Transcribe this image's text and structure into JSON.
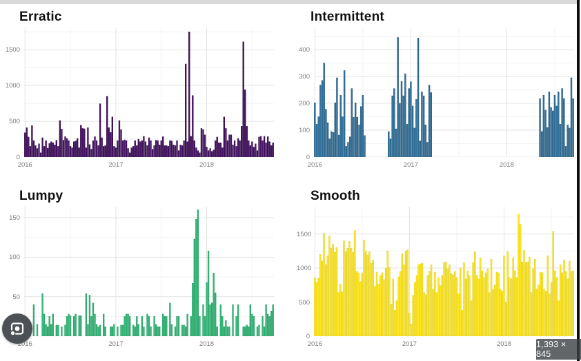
{
  "page": {
    "size_badge": "1,393 × 845",
    "lens_button_icon": "google-lens-camera-icon",
    "top_strip_color": "#d8d8d8",
    "right_border_color": "#0b0b0b",
    "badge_bg": "rgba(60,64,67,0.80)"
  },
  "chart_data": [
    {
      "type": "bar",
      "title": "Erratic",
      "bar_color": "#481567",
      "bar_border": "#310a47",
      "y_ticks": [
        0,
        500,
        1000,
        1500
      ],
      "y_max": 1810,
      "x_ticks": [
        {
          "label": "2016",
          "week": 0
        },
        {
          "label": "2017",
          "week": 52
        },
        {
          "label": "2018",
          "week": 104
        }
      ],
      "x_minor_weeks": [
        26,
        78,
        130
      ],
      "grid": "on",
      "values": [
        340,
        410,
        280,
        150,
        440,
        230,
        160,
        120,
        185,
        60,
        270,
        150,
        230,
        125,
        190,
        215,
        200,
        170,
        235,
        150,
        510,
        390,
        235,
        285,
        260,
        230,
        150,
        130,
        215,
        225,
        260,
        130,
        445,
        400,
        395,
        130,
        410,
        175,
        110,
        230,
        285,
        230,
        160,
        745,
        270,
        150,
        160,
        850,
        410,
        345,
        560,
        150,
        130,
        230,
        510,
        385,
        230,
        240,
        230,
        120,
        60,
        130,
        150,
        230,
        160,
        250,
        215,
        230,
        290,
        215,
        160,
        270,
        230,
        110,
        160,
        235,
        230,
        170,
        230,
        285,
        160,
        160,
        150,
        230,
        225,
        170,
        160,
        230,
        90,
        170,
        160,
        230,
        1300,
        215,
        1750,
        290,
        860,
        230,
        130,
        90,
        60,
        400,
        385,
        310,
        140,
        90,
        120,
        80,
        100,
        230,
        280,
        200,
        200,
        130,
        560,
        400,
        230,
        310,
        310,
        170,
        230,
        150,
        260,
        230,
        430,
        1610,
        940,
        430,
        230,
        160,
        215,
        140,
        185,
        90,
        280,
        290,
        230,
        290,
        200,
        285,
        215,
        160,
        200
      ]
    },
    {
      "type": "bar",
      "title": "Intermittent",
      "bar_color": "#33739c",
      "bar_border": "#24567a",
      "y_ticks": [
        0,
        100,
        200,
        300,
        400
      ],
      "y_max": 482,
      "x_ticks": [
        {
          "label": "2016",
          "week": 0
        },
        {
          "label": "2017",
          "week": 52
        },
        {
          "label": "2018",
          "week": 104
        }
      ],
      "x_minor_weeks": [
        26,
        78,
        130
      ],
      "grid": "on",
      "values": [
        202,
        122,
        150,
        268,
        285,
        350,
        178,
        128,
        68,
        95,
        92,
        202,
        295,
        82,
        230,
        150,
        322,
        40,
        55,
        75,
        255,
        148,
        202,
        148,
        120,
        188,
        230,
        80,
        0,
        0,
        0,
        0,
        0,
        0,
        0,
        0,
        0,
        0,
        0,
        0,
        95,
        68,
        228,
        255,
        105,
        445,
        200,
        282,
        228,
        310,
        122,
        255,
        280,
        190,
        108,
        215,
        443,
        60,
        243,
        228,
        120,
        55,
        268,
        240,
        0,
        0,
        0,
        0,
        0,
        0,
        0,
        0,
        0,
        0,
        0,
        0,
        0,
        0,
        0,
        0,
        0,
        0,
        0,
        0,
        0,
        0,
        0,
        0,
        0,
        0,
        0,
        0,
        0,
        0,
        0,
        0,
        0,
        0,
        0,
        0,
        0,
        0,
        0,
        0,
        0,
        0,
        0,
        0,
        0,
        0,
        0,
        0,
        0,
        0,
        0,
        0,
        0,
        0,
        0,
        0,
        0,
        0,
        218,
        95,
        230,
        175,
        110,
        243,
        185,
        172,
        230,
        190,
        243,
        122,
        255,
        218,
        40,
        120,
        108,
        295,
        218
      ]
    },
    {
      "type": "bar",
      "title": "Lumpy",
      "bar_color": "#35b779",
      "bar_border": "#23995f",
      "y_ticks": [
        0,
        50,
        100,
        150
      ],
      "y_max": 164,
      "x_ticks": [
        {
          "label": "2016",
          "week": 0
        },
        {
          "label": "2017",
          "week": 52
        },
        {
          "label": "2018",
          "week": 104
        }
      ],
      "x_minor_weeks": [
        26,
        78,
        130
      ],
      "grid": "on",
      "values": [
        15,
        0,
        15,
        15,
        0,
        40,
        0,
        15,
        0,
        0,
        54,
        28,
        15,
        12,
        25,
        15,
        28,
        0,
        14,
        14,
        0,
        12,
        0,
        14,
        25,
        28,
        26,
        0,
        25,
        28,
        0,
        26,
        26,
        0,
        0,
        54,
        15,
        52,
        25,
        42,
        28,
        15,
        12,
        14,
        0,
        28,
        12,
        0,
        0,
        12,
        12,
        15,
        0,
        12,
        0,
        14,
        14,
        25,
        28,
        28,
        25,
        0,
        14,
        12,
        25,
        15,
        0,
        25,
        12,
        0,
        28,
        25,
        12,
        0,
        25,
        15,
        12,
        12,
        0,
        28,
        25,
        25,
        0,
        42,
        15,
        0,
        12,
        25,
        25,
        0,
        14,
        14,
        12,
        28,
        0,
        25,
        67,
        123,
        148,
        160,
        25,
        0,
        40,
        25,
        68,
        108,
        40,
        42,
        80,
        55,
        12,
        0,
        40,
        25,
        12,
        20,
        12,
        12,
        0,
        40,
        0,
        25,
        40,
        0,
        0,
        12,
        12,
        14,
        12,
        40,
        28,
        25,
        0,
        12,
        14,
        0,
        25,
        12,
        40,
        28,
        25,
        32,
        40
      ]
    },
    {
      "type": "bar",
      "title": "Smooth",
      "bar_color": "#fde725",
      "bar_border": "#e0ca12",
      "y_ticks": [
        0,
        500,
        1000,
        1500
      ],
      "y_max": 1900,
      "x_ticks": [
        {
          "label": "2016",
          "week": 0
        },
        {
          "label": "2017",
          "week": 52
        },
        {
          "label": "2018",
          "week": 104
        }
      ],
      "x_minor_weeks": [
        26,
        78,
        130
      ],
      "grid": "on",
      "values": [
        860,
        790,
        850,
        1200,
        1100,
        1510,
        1050,
        1180,
        1470,
        1290,
        1350,
        1230,
        1300,
        640,
        760,
        650,
        1400,
        1240,
        1290,
        1390,
        1290,
        1230,
        1550,
        950,
        930,
        800,
        930,
        1410,
        1250,
        1190,
        1240,
        1070,
        1120,
        730,
        940,
        760,
        890,
        930,
        830,
        1000,
        1250,
        1010,
        470,
        840,
        380,
        520,
        870,
        950,
        1210,
        1050,
        1250,
        1270,
        340,
        180,
        600,
        790,
        890,
        1050,
        1060,
        1070,
        640,
        610,
        890,
        950,
        1050,
        690,
        940,
        640,
        860,
        740,
        890,
        1080,
        1090,
        990,
        1050,
        920,
        900,
        950,
        860,
        620,
        1000,
        380,
        1080,
        840,
        960,
        890,
        520,
        1080,
        1240,
        890,
        840,
        1150,
        960,
        860,
        930,
        990,
        640,
        1130,
        690,
        750,
        940,
        930,
        690,
        660,
        1180,
        500,
        1240,
        860,
        840,
        1150,
        960,
        860,
        1790,
        1640,
        1090,
        1260,
        1080,
        1090,
        1160,
        640,
        990,
        1130,
        690,
        750,
        940,
        930,
        690,
        660,
        1180,
        620,
        790,
        1540,
        960,
        860,
        520,
        1050,
        930,
        1120,
        950,
        840,
        1100,
        950,
        960
      ]
    }
  ]
}
